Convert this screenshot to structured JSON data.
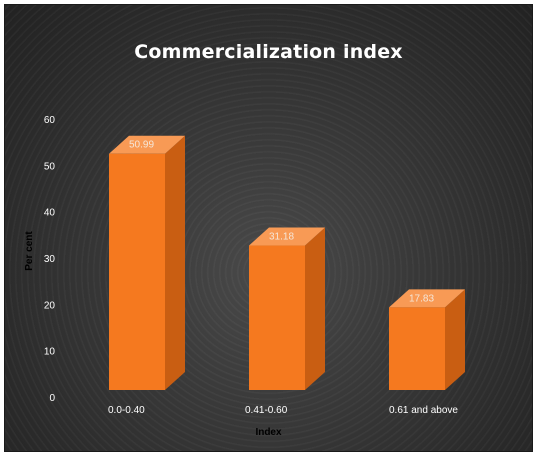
{
  "chart_data": {
    "type": "bar",
    "title": "Commercialization index",
    "xlabel": "Index",
    "ylabel": "Per cent",
    "categories": [
      "0.0-0.40",
      "0.41-0.60",
      "0.61 and above"
    ],
    "values": [
      50.99,
      31.18,
      17.83
    ],
    "data_labels": [
      "50.99",
      "31.18",
      "17.83"
    ],
    "ylim": [
      0,
      60
    ],
    "yticks": [
      "0",
      "10",
      "20",
      "30",
      "40",
      "50",
      "60"
    ],
    "grid": false,
    "legend": "none",
    "bar_style": "3d-column"
  },
  "colors": {
    "bar_front": "#f5791f",
    "bar_top": "#f89a55",
    "bar_side": "#c95e12",
    "background": "#333333"
  }
}
